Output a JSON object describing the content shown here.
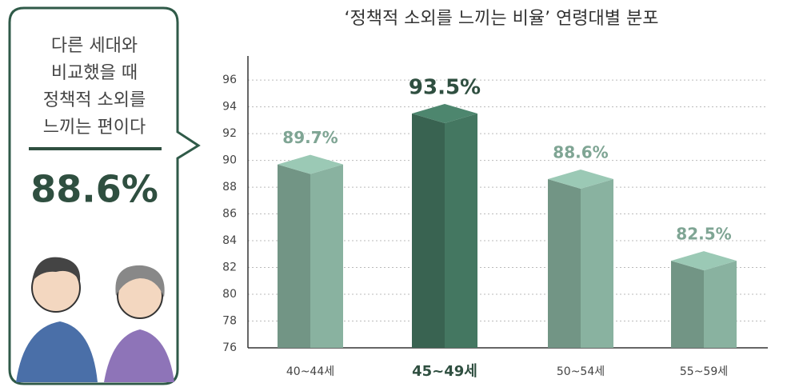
{
  "callout": {
    "lines": [
      "다른 세대와",
      "비교했을 때",
      "정책적 소외를",
      "느끼는 편이다"
    ],
    "value": "88.6%"
  },
  "chart_data": {
    "type": "bar3d",
    "title": "‘정책적 소외를 느끼는 비율’ 연령대별 분포",
    "categories": [
      "40~44세",
      "45~49세",
      "50~54세",
      "55~59세"
    ],
    "values": [
      89.7,
      93.5,
      88.6,
      82.5
    ],
    "value_labels": [
      "89.7%",
      "93.5%",
      "88.6%",
      "82.5%"
    ],
    "colors": [
      "#7fa594",
      "#3f6e5a",
      "#7fa594",
      "#7fa594"
    ],
    "bold_categories": [
      false,
      true,
      false,
      false
    ],
    "ylim": [
      76,
      97.5
    ],
    "yticks": [
      76,
      78,
      80,
      82,
      84,
      86,
      88,
      90,
      92,
      94,
      96
    ],
    "grid": true
  }
}
